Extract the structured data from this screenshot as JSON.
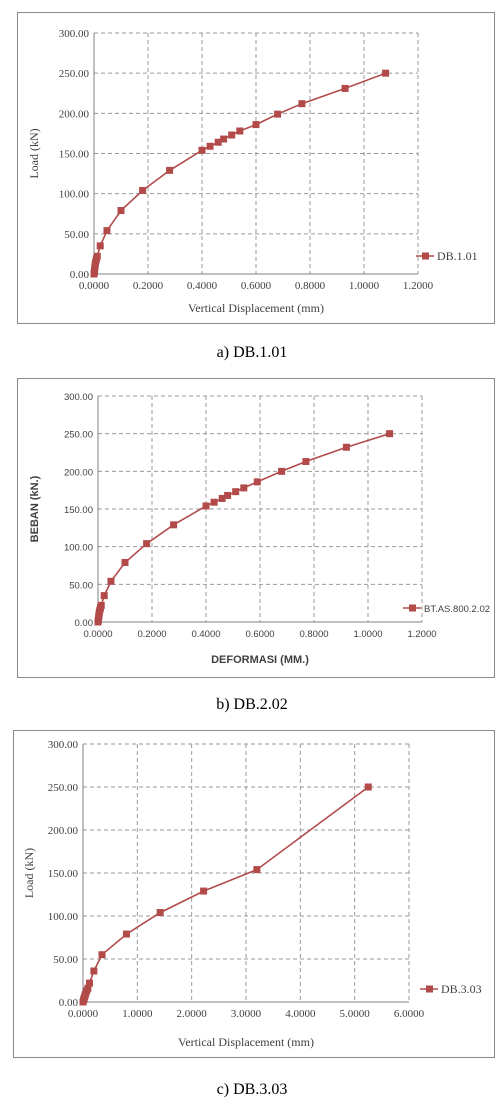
{
  "series_color": "#B24A4A",
  "grid_color": "#9a9a9a",
  "chart_data": [
    {
      "type": "line",
      "ylabel": "Load (kN)",
      "xlabel": "Vertical Displacement (mm)",
      "xlim": [
        0,
        1.2
      ],
      "ylim": [
        0,
        300
      ],
      "xticks": [
        "0.0000",
        "0.2000",
        "0.4000",
        "0.6000",
        "0.8000",
        "1.0000",
        "1.2000"
      ],
      "yticks": [
        "0.00",
        "50.00",
        "100.00",
        "150.00",
        "200.00",
        "250.00",
        "300.00"
      ],
      "grid": true,
      "legend": "right",
      "caption": "a) DB.1.01",
      "series": [
        {
          "name": "DB.1.01",
          "x": [
            0,
            0.001,
            0.002,
            0.003,
            0.004,
            0.005,
            0.007,
            0.009,
            0.012,
            0.023,
            0.048,
            0.1,
            0.18,
            0.28,
            0.4,
            0.43,
            0.46,
            0.48,
            0.51,
            0.54,
            0.6,
            0.68,
            0.77,
            0.93,
            1.08
          ],
          "y": [
            0,
            2,
            5,
            8,
            10,
            13,
            16,
            19,
            22,
            35,
            54,
            79,
            104,
            129,
            154,
            159,
            164,
            168,
            173,
            178,
            186,
            199,
            212,
            231,
            250
          ]
        }
      ]
    },
    {
      "type": "line",
      "ylabel": "BEBAN (kN.)",
      "xlabel": "DEFORMASI (MM.)",
      "xlim": [
        0,
        1.2
      ],
      "ylim": [
        0,
        300
      ],
      "xticks": [
        "0.0000",
        "0.2000",
        "0.4000",
        "0.6000",
        "0.8000",
        "1.0000",
        "1.2000"
      ],
      "yticks": [
        "0.00",
        "50.00",
        "100.00",
        "150.00",
        "200.00",
        "250.00",
        "300.00"
      ],
      "grid": true,
      "legend": "right",
      "caption": "b) DB.2.02",
      "series": [
        {
          "name": "BT.AS.800.2.02",
          "x": [
            0,
            0.001,
            0.002,
            0.003,
            0.004,
            0.005,
            0.007,
            0.009,
            0.012,
            0.023,
            0.048,
            0.1,
            0.18,
            0.28,
            0.4,
            0.43,
            0.46,
            0.48,
            0.51,
            0.54,
            0.59,
            0.68,
            0.77,
            0.92,
            1.08
          ],
          "y": [
            0,
            2,
            5,
            8,
            10,
            13,
            16,
            19,
            22,
            35,
            54,
            79,
            104,
            129,
            154,
            159,
            164,
            168,
            173,
            178,
            186,
            200,
            213,
            232,
            250
          ]
        }
      ]
    },
    {
      "type": "line",
      "ylabel": "Load (kN)",
      "xlabel": "Vertical Displacement (mm)",
      "xlim": [
        0,
        6
      ],
      "ylim": [
        0,
        300
      ],
      "xticks": [
        "0.0000",
        "1.0000",
        "2.0000",
        "3.0000",
        "4.0000",
        "5.0000",
        "6.0000"
      ],
      "yticks": [
        "0.00",
        "50.00",
        "100.00",
        "150.00",
        "200.00",
        "250.00",
        "300.00"
      ],
      "grid": true,
      "legend": "right",
      "caption": "c) DB.3.03",
      "series": [
        {
          "name": "DB.3.03",
          "x": [
            0,
            0.01,
            0.02,
            0.03,
            0.04,
            0.05,
            0.07,
            0.09,
            0.12,
            0.2,
            0.35,
            0.8,
            1.42,
            2.22,
            3.2,
            5.25
          ],
          "y": [
            0,
            2,
            4,
            6,
            8,
            10,
            13,
            16,
            22,
            36,
            55,
            79,
            104,
            129,
            154,
            250
          ]
        }
      ]
    }
  ]
}
